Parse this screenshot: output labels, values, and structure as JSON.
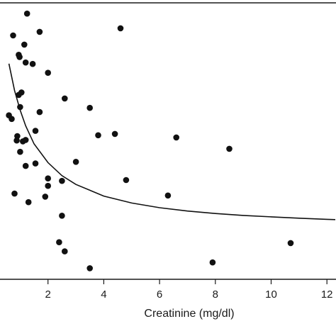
{
  "chart_data": {
    "type": "scatter",
    "title": "",
    "xlabel": "Creatinine (mg/dl)",
    "ylabel": "",
    "xlim": [
      0,
      12.3
    ],
    "ylim": [
      0,
      1
    ],
    "x_ticks": [
      2,
      4,
      6,
      8,
      10,
      12
    ],
    "x_tick_labels": [
      "2",
      "4",
      "6",
      "8",
      "10",
      "12"
    ],
    "grid": false,
    "legend": "none",
    "colors": {
      "points": "#111111",
      "curve": "#111111",
      "axes": "#1a1a1a"
    },
    "series": [
      {
        "type": "scatter",
        "points": [
          [
            1.25,
            0.961
          ],
          [
            0.75,
            0.882
          ],
          [
            1.7,
            0.895
          ],
          [
            1.15,
            0.849
          ],
          [
            0.95,
            0.812
          ],
          [
            0.98,
            0.804
          ],
          [
            1.2,
            0.784
          ],
          [
            1.45,
            0.779
          ],
          [
            2.0,
            0.747
          ],
          [
            1.05,
            0.676
          ],
          [
            0.95,
            0.667
          ],
          [
            2.6,
            0.654
          ],
          [
            1.0,
            0.623
          ],
          [
            3.5,
            0.62
          ],
          [
            0.6,
            0.593
          ],
          [
            1.7,
            0.605
          ],
          [
            0.7,
            0.58
          ],
          [
            1.55,
            0.537
          ],
          [
            0.9,
            0.518
          ],
          [
            0.88,
            0.502
          ],
          [
            1.1,
            0.499
          ],
          [
            1.2,
            0.504
          ],
          [
            1.0,
            0.461
          ],
          [
            1.55,
            0.419
          ],
          [
            1.2,
            0.41
          ],
          [
            3.0,
            0.425
          ],
          [
            3.8,
            0.521
          ],
          [
            4.4,
            0.526
          ],
          [
            6.6,
            0.513
          ],
          [
            8.5,
            0.472
          ],
          [
            2.0,
            0.365
          ],
          [
            2.0,
            0.338
          ],
          [
            2.5,
            0.356
          ],
          [
            4.8,
            0.359
          ],
          [
            0.8,
            0.31
          ],
          [
            1.9,
            0.299
          ],
          [
            1.3,
            0.279
          ],
          [
            6.3,
            0.303
          ],
          [
            2.5,
            0.23
          ],
          [
            2.4,
            0.134
          ],
          [
            2.6,
            0.101
          ],
          [
            10.7,
            0.131
          ],
          [
            7.9,
            0.061
          ],
          [
            3.5,
            0.04
          ],
          [
            4.6,
            0.908
          ]
        ]
      },
      {
        "type": "line",
        "fit": "hyperbolic",
        "points": [
          [
            0.6,
            0.78
          ],
          [
            0.8,
            0.683
          ],
          [
            1.0,
            0.612
          ],
          [
            1.2,
            0.555
          ],
          [
            1.5,
            0.49
          ],
          [
            2.0,
            0.422
          ],
          [
            2.5,
            0.375
          ],
          [
            3.0,
            0.343
          ],
          [
            4.0,
            0.301
          ],
          [
            5.0,
            0.276
          ],
          [
            6.0,
            0.259
          ],
          [
            7.0,
            0.247
          ],
          [
            8.0,
            0.238
          ],
          [
            9.0,
            0.231
          ],
          [
            10.0,
            0.226
          ],
          [
            11.0,
            0.221
          ],
          [
            12.0,
            0.217
          ],
          [
            12.3,
            0.216
          ]
        ]
      }
    ]
  }
}
